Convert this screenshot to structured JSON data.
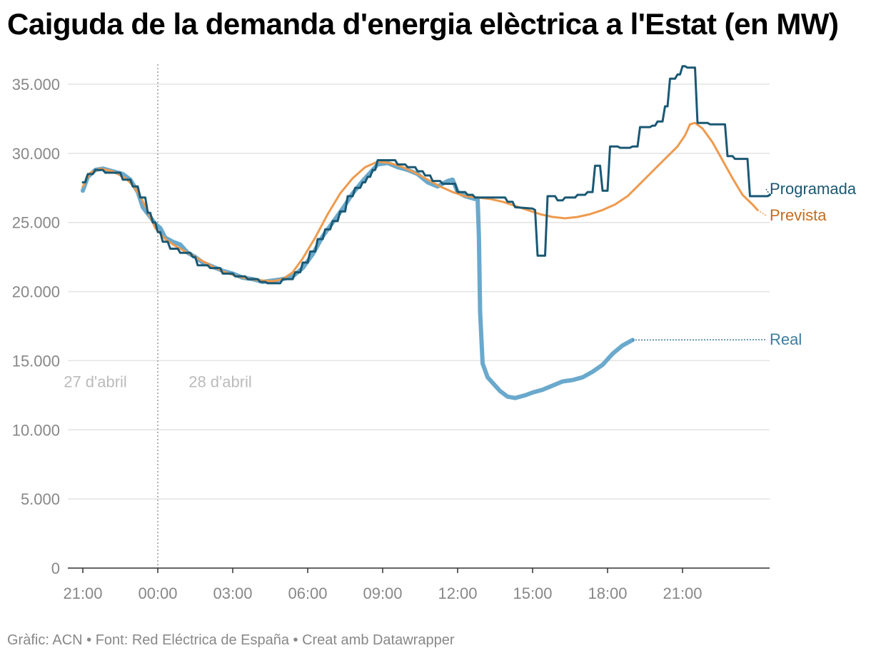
{
  "title": "Caiguda de la demanda d'energia elèctrica a l'Estat (en MW)",
  "footer": "Gràfic: ACN • Font: Red Eléctrica de España • Creat amb Datawrapper",
  "colors": {
    "real": "#6aa9cc",
    "prevista": "#ee9a4d",
    "programada": "#1a5873",
    "prevista_label": "#c46c1f",
    "real_label": "#3e7d9e"
  },
  "chart_data": {
    "type": "line",
    "title": "Caiguda de la demanda d'energia elèctrica a l'Estat (en MW)",
    "xlabel": "",
    "ylabel": "",
    "x_unit": "hours from 00:00 on 28 d'abril",
    "xlim": [
      -3.6,
      24.6
    ],
    "ylim": [
      0,
      35000
    ],
    "grid": true,
    "x_ticks": [
      {
        "x": -3,
        "label": "21:00"
      },
      {
        "x": 0,
        "label": "00:00"
      },
      {
        "x": 3,
        "label": "03:00"
      },
      {
        "x": 6,
        "label": "06:00"
      },
      {
        "x": 9,
        "label": "09:00"
      },
      {
        "x": 12,
        "label": "12:00"
      },
      {
        "x": 15,
        "label": "15:00"
      },
      {
        "x": 18,
        "label": "18:00"
      },
      {
        "x": 21,
        "label": "21:00"
      }
    ],
    "y_ticks": [
      {
        "y": 0,
        "label": "0"
      },
      {
        "y": 5000,
        "label": "5.000"
      },
      {
        "y": 10000,
        "label": "10.000"
      },
      {
        "y": 15000,
        "label": "15.000"
      },
      {
        "y": 20000,
        "label": "20.000"
      },
      {
        "y": 25000,
        "label": "25.000"
      },
      {
        "y": 30000,
        "label": "30.000"
      },
      {
        "y": 35000,
        "label": "35.000"
      }
    ],
    "annotations": [
      {
        "x": -2.5,
        "y": 13500,
        "text": "27 d'abril"
      },
      {
        "x": 2.5,
        "y": 13500,
        "text": "28 d'abril"
      }
    ],
    "divider_x": 0,
    "series": [
      {
        "name": "Prevista",
        "values": [
          [
            -3,
            27600
          ],
          [
            -2.7,
            28600
          ],
          [
            -2.3,
            28900
          ],
          [
            -1.8,
            28700
          ],
          [
            -1.3,
            28200
          ],
          [
            -1,
            27700
          ],
          [
            -0.7,
            26900
          ],
          [
            -0.4,
            25800
          ],
          [
            -0.1,
            24600
          ],
          [
            0.3,
            23800
          ],
          [
            0.7,
            23300
          ],
          [
            1.2,
            22800
          ],
          [
            1.7,
            22300
          ],
          [
            2.2,
            21800
          ],
          [
            2.7,
            21400
          ],
          [
            3.2,
            21100
          ],
          [
            3.7,
            20900
          ],
          [
            4.2,
            20800
          ],
          [
            4.6,
            20750
          ],
          [
            5,
            20900
          ],
          [
            5.4,
            21400
          ],
          [
            5.8,
            22400
          ],
          [
            6.3,
            23900
          ],
          [
            6.8,
            25600
          ],
          [
            7.3,
            27100
          ],
          [
            7.8,
            28200
          ],
          [
            8.3,
            29000
          ],
          [
            8.8,
            29400
          ],
          [
            9.3,
            29300
          ],
          [
            9.8,
            29000
          ],
          [
            10.3,
            28600
          ],
          [
            10.8,
            28100
          ],
          [
            11.3,
            27600
          ],
          [
            11.8,
            27200
          ],
          [
            12.3,
            26900
          ],
          [
            12.8,
            26800
          ],
          [
            13.3,
            26700
          ],
          [
            13.8,
            26500
          ],
          [
            14.3,
            26200
          ],
          [
            14.8,
            25900
          ],
          [
            15.3,
            25600
          ],
          [
            15.8,
            25400
          ],
          [
            16.3,
            25300
          ],
          [
            16.8,
            25400
          ],
          [
            17.3,
            25600
          ],
          [
            17.8,
            25900
          ],
          [
            18.3,
            26300
          ],
          [
            18.8,
            26900
          ],
          [
            19.3,
            27800
          ],
          [
            19.8,
            28700
          ],
          [
            20.3,
            29600
          ],
          [
            20.8,
            30500
          ],
          [
            21.1,
            31300
          ],
          [
            21.3,
            32100
          ],
          [
            21.5,
            32200
          ],
          [
            21.8,
            31800
          ],
          [
            22.2,
            30800
          ],
          [
            22.6,
            29500
          ],
          [
            23,
            28200
          ],
          [
            23.4,
            27000
          ],
          [
            23.8,
            26300
          ],
          [
            24,
            25900
          ]
        ]
      },
      {
        "name": "Programada",
        "values": [
          [
            -3,
            27900
          ],
          [
            -2.9,
            27900
          ],
          [
            -2.8,
            28500
          ],
          [
            -2.6,
            28500
          ],
          [
            -2.5,
            28800
          ],
          [
            -2.2,
            28800
          ],
          [
            -2.1,
            28600
          ],
          [
            -1.5,
            28600
          ],
          [
            -1.4,
            28100
          ],
          [
            -1.1,
            28100
          ],
          [
            -1,
            27600
          ],
          [
            -0.8,
            27600
          ],
          [
            -0.7,
            26800
          ],
          [
            -0.5,
            26800
          ],
          [
            -0.4,
            25700
          ],
          [
            -0.3,
            25700
          ],
          [
            -0.2,
            25000
          ],
          [
            -0.1,
            25000
          ],
          [
            0,
            24300
          ],
          [
            0.1,
            24300
          ],
          [
            0.2,
            23600
          ],
          [
            0.4,
            23600
          ],
          [
            0.5,
            23100
          ],
          [
            0.8,
            23100
          ],
          [
            0.9,
            22800
          ],
          [
            1.3,
            22800
          ],
          [
            1.4,
            22500
          ],
          [
            1.5,
            22500
          ],
          [
            1.6,
            21900
          ],
          [
            2,
            21900
          ],
          [
            2.1,
            21700
          ],
          [
            2.5,
            21700
          ],
          [
            2.6,
            21300
          ],
          [
            3,
            21300
          ],
          [
            3.1,
            21100
          ],
          [
            3.5,
            21100
          ],
          [
            3.6,
            20900
          ],
          [
            4,
            20900
          ],
          [
            4.1,
            20700
          ],
          [
            4.3,
            20700
          ],
          [
            4.4,
            20600
          ],
          [
            4.9,
            20600
          ],
          [
            5,
            20900
          ],
          [
            5.4,
            20900
          ],
          [
            5.5,
            21400
          ],
          [
            5.7,
            21400
          ],
          [
            5.8,
            22100
          ],
          [
            6,
            22100
          ],
          [
            6.1,
            22900
          ],
          [
            6.3,
            22900
          ],
          [
            6.4,
            23800
          ],
          [
            6.6,
            23800
          ],
          [
            6.7,
            24500
          ],
          [
            6.9,
            24500
          ],
          [
            7,
            25100
          ],
          [
            7.2,
            25100
          ],
          [
            7.3,
            25800
          ],
          [
            7.5,
            25800
          ],
          [
            7.6,
            26900
          ],
          [
            7.8,
            26900
          ],
          [
            7.9,
            27500
          ],
          [
            8.1,
            27500
          ],
          [
            8.2,
            27900
          ],
          [
            8.3,
            27900
          ],
          [
            8.4,
            28300
          ],
          [
            8.5,
            28300
          ],
          [
            8.6,
            28800
          ],
          [
            8.7,
            28800
          ],
          [
            8.8,
            29500
          ],
          [
            9.5,
            29500
          ],
          [
            9.6,
            29200
          ],
          [
            9.9,
            29200
          ],
          [
            10,
            29000
          ],
          [
            10.3,
            29000
          ],
          [
            10.4,
            28700
          ],
          [
            10.6,
            28700
          ],
          [
            10.7,
            28400
          ],
          [
            10.9,
            28400
          ],
          [
            11,
            28000
          ],
          [
            11.3,
            28000
          ],
          [
            11.4,
            27800
          ],
          [
            11.9,
            27800
          ],
          [
            12,
            27200
          ],
          [
            12.3,
            27200
          ],
          [
            12.4,
            27000
          ],
          [
            12.6,
            27000
          ],
          [
            12.7,
            26800
          ],
          [
            13.9,
            26800
          ],
          [
            14,
            26500
          ],
          [
            14.2,
            26500
          ],
          [
            14.3,
            26100
          ],
          [
            15,
            26000
          ],
          [
            15.1,
            25900
          ],
          [
            15.2,
            22600
          ],
          [
            15.5,
            22600
          ],
          [
            15.6,
            26900
          ],
          [
            15.9,
            26900
          ],
          [
            16,
            26600
          ],
          [
            16.2,
            26600
          ],
          [
            16.3,
            26800
          ],
          [
            16.7,
            26800
          ],
          [
            16.8,
            27000
          ],
          [
            17.1,
            27000
          ],
          [
            17.2,
            27200
          ],
          [
            17.4,
            27200
          ],
          [
            17.5,
            29100
          ],
          [
            17.7,
            29100
          ],
          [
            17.8,
            27300
          ],
          [
            18,
            27300
          ],
          [
            18.1,
            30500
          ],
          [
            18.4,
            30500
          ],
          [
            18.5,
            30400
          ],
          [
            18.9,
            30400
          ],
          [
            19,
            30500
          ],
          [
            19.2,
            30500
          ],
          [
            19.3,
            31900
          ],
          [
            19.7,
            31900
          ],
          [
            19.8,
            32000
          ],
          [
            19.9,
            32000
          ],
          [
            20,
            32300
          ],
          [
            20.2,
            32300
          ],
          [
            20.3,
            33400
          ],
          [
            20.4,
            33400
          ],
          [
            20.5,
            35400
          ],
          [
            20.7,
            35400
          ],
          [
            20.8,
            35700
          ],
          [
            20.9,
            35700
          ],
          [
            21,
            36300
          ],
          [
            21.1,
            36300
          ],
          [
            21.2,
            36200
          ],
          [
            21.5,
            36200
          ],
          [
            21.6,
            32200
          ],
          [
            22,
            32200
          ],
          [
            22.1,
            32100
          ],
          [
            22.7,
            32100
          ],
          [
            22.8,
            29800
          ],
          [
            23,
            29800
          ],
          [
            23.1,
            29600
          ],
          [
            23.6,
            29600
          ],
          [
            23.7,
            26900
          ],
          [
            24.1,
            26900
          ],
          [
            24.4,
            26900
          ],
          [
            24.5,
            27000
          ]
        ]
      },
      {
        "name": "Real",
        "values": [
          [
            -3,
            27300
          ],
          [
            -2.8,
            28300
          ],
          [
            -2.5,
            28800
          ],
          [
            -2.2,
            28900
          ],
          [
            -1.8,
            28700
          ],
          [
            -1.4,
            28500
          ],
          [
            -1.1,
            28100
          ],
          [
            -0.8,
            27200
          ],
          [
            -0.6,
            26100
          ],
          [
            -0.3,
            25400
          ],
          [
            -0.1,
            24900
          ],
          [
            0.1,
            24600
          ],
          [
            0.3,
            23900
          ],
          [
            0.6,
            23600
          ],
          [
            0.9,
            23400
          ],
          [
            1.2,
            22800
          ],
          [
            1.5,
            22500
          ],
          [
            1.8,
            22100
          ],
          [
            2.2,
            21800
          ],
          [
            2.6,
            21500
          ],
          [
            3,
            21300
          ],
          [
            3.4,
            21000
          ],
          [
            3.8,
            20900
          ],
          [
            4.2,
            20700
          ],
          [
            4.6,
            20800
          ],
          [
            5,
            20900
          ],
          [
            5.4,
            21100
          ],
          [
            5.8,
            21700
          ],
          [
            6.2,
            22700
          ],
          [
            6.6,
            24000
          ],
          [
            7,
            25000
          ],
          [
            7.4,
            26000
          ],
          [
            7.8,
            27100
          ],
          [
            8.2,
            28000
          ],
          [
            8.5,
            28600
          ],
          [
            8.8,
            29200
          ],
          [
            9.2,
            29300
          ],
          [
            9.6,
            29000
          ],
          [
            10,
            28800
          ],
          [
            10.4,
            28500
          ],
          [
            10.8,
            27900
          ],
          [
            11.2,
            27600
          ],
          [
            11.6,
            28000
          ],
          [
            11.8,
            28100
          ],
          [
            12,
            27200
          ],
          [
            12.3,
            26900
          ],
          [
            12.7,
            26700
          ],
          [
            12.8,
            26700
          ],
          [
            12.85,
            24000
          ],
          [
            12.9,
            18500
          ],
          [
            13,
            14800
          ],
          [
            13.2,
            13800
          ],
          [
            13.5,
            13200
          ],
          [
            13.7,
            12800
          ],
          [
            14,
            12400
          ],
          [
            14.3,
            12300
          ],
          [
            14.7,
            12500
          ],
          [
            15,
            12700
          ],
          [
            15.4,
            12900
          ],
          [
            15.8,
            13200
          ],
          [
            16.2,
            13500
          ],
          [
            16.6,
            13600
          ],
          [
            17,
            13800
          ],
          [
            17.4,
            14200
          ],
          [
            17.8,
            14700
          ],
          [
            18.2,
            15500
          ],
          [
            18.6,
            16100
          ],
          [
            18.8,
            16300
          ],
          [
            19,
            16500
          ]
        ]
      }
    ]
  },
  "labels": {
    "programada": "Programada",
    "prevista": "Prevista",
    "real": "Real"
  }
}
